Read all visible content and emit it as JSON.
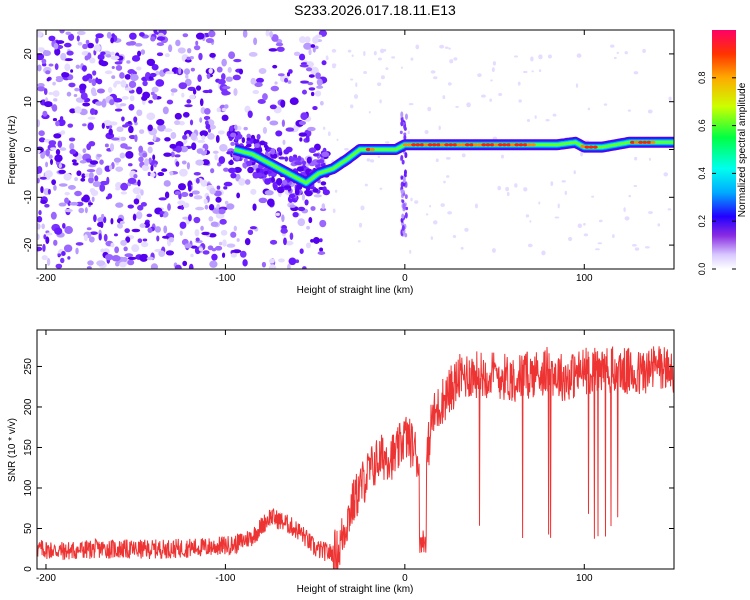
{
  "page": {
    "title": "S233.2026.017.18.11.E13"
  },
  "chart_data": [
    {
      "type": "heatmap",
      "xlabel": "Height of straight line (km)",
      "ylabel": "Frequency (Hz)",
      "xlim": [
        -205,
        150
      ],
      "ylim": [
        -25,
        25
      ],
      "xticks": [
        -200,
        -100,
        0,
        100
      ],
      "yticks": [
        -20,
        -10,
        0,
        10,
        20
      ],
      "colorbar": {
        "label": "Normalized spectral amplitude",
        "range": [
          0,
          1
        ],
        "ticks": [
          0.0,
          0.2,
          0.4,
          0.6,
          0.8
        ],
        "tick_labels": [
          "0.0",
          "0.2",
          "0.4",
          "0.6",
          "0.8"
        ]
      },
      "ridge": {
        "x": [
          -95,
          -85,
          -75,
          -65,
          -55,
          -48,
          -40,
          -32,
          -25,
          -18,
          -12,
          -5,
          0,
          20,
          40,
          60,
          75,
          85,
          95,
          100,
          110,
          125,
          150
        ],
        "y": [
          0,
          -1,
          -3,
          -5,
          -7,
          -5,
          -4,
          -2,
          0,
          0,
          0,
          0,
          1,
          1,
          1,
          1,
          1,
          1,
          1.5,
          0.5,
          0.5,
          1.5,
          1.5
        ]
      },
      "grid": false,
      "legend": "right"
    },
    {
      "type": "line",
      "xlabel": "Height of straight line (km)",
      "ylabel": "SNR (10 * v/v)",
      "xlim": [
        -205,
        150
      ],
      "ylim": [
        0,
        295
      ],
      "xticks": [
        -200,
        -100,
        0,
        100
      ],
      "yticks": [
        0,
        50,
        100,
        150,
        200,
        250
      ],
      "series": [
        {
          "color": "#ee3333",
          "x": [
            -205,
            -190,
            -170,
            -150,
            -130,
            -110,
            -95,
            -85,
            -75,
            -65,
            -58,
            -50,
            -42,
            -37,
            -35,
            -30,
            -25,
            -20,
            -15,
            -10,
            -5,
            0,
            5,
            8,
            10,
            12,
            15,
            18,
            20,
            25,
            30,
            35,
            40,
            50,
            60,
            70,
            80,
            90,
            100,
            110,
            120,
            130,
            140,
            150
          ],
          "y": [
            25,
            22,
            25,
            24,
            25,
            27,
            30,
            40,
            65,
            55,
            45,
            25,
            20,
            20,
            40,
            75,
            100,
            120,
            135,
            140,
            140,
            165,
            150,
            130,
            30,
            130,
            185,
            195,
            205,
            220,
            235,
            240,
            240,
            240,
            235,
            240,
            245,
            235,
            245,
            245,
            245,
            240,
            250,
            245
          ]
        }
      ],
      "grid": false
    }
  ]
}
